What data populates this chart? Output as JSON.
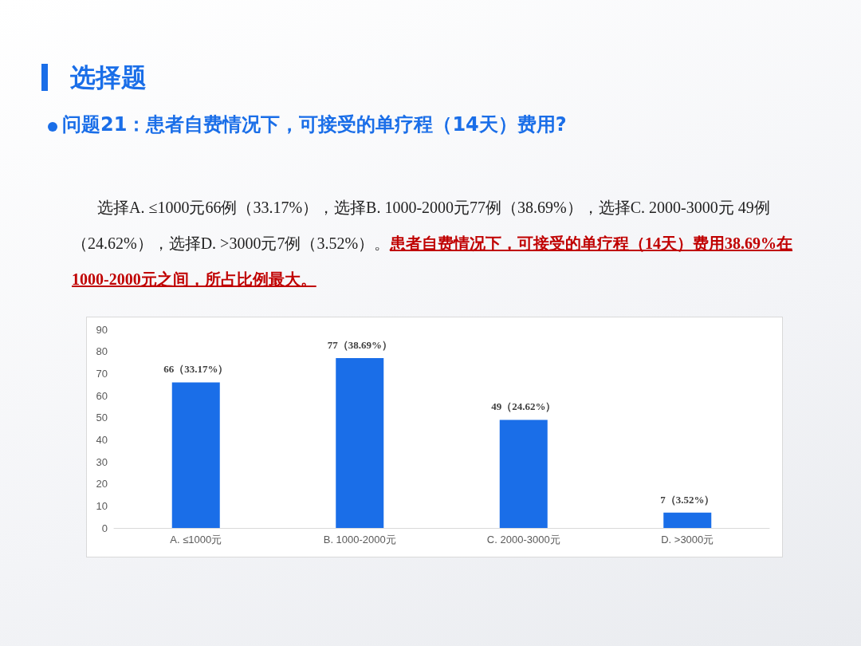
{
  "chart_data": {
    "type": "bar",
    "title": "选择题",
    "subtitle": "问题21：患者自费情况下，可接受的单疗程（14天）费用?",
    "annotations": [
      "选择A. ≤1000元66例（33.17%），选择B. 1000-2000元77例（38.69%），选择C. 2000-3000元 49例（24.62%），选择D. >3000元7例（3.52%）。",
      "患者自费情况下，可接受的单疗程（14天）费用38.69%在1000-2000元之间，所占比例最大。"
    ],
    "categories": [
      "A. ≤1000元",
      "B. 1000-2000元",
      "C. 2000-3000元",
      "D. >3000元"
    ],
    "values": [
      66,
      77,
      49,
      7
    ],
    "value_labels": [
      "66（33.17%）",
      "77（38.69%）",
      "49（24.62%）",
      "7（3.52%）"
    ],
    "color": "#1a6ee8",
    "ylim": [
      0,
      90
    ],
    "yticks": [
      0,
      10,
      20,
      30,
      40,
      50,
      60,
      70,
      80,
      90
    ],
    "grid": false
  }
}
